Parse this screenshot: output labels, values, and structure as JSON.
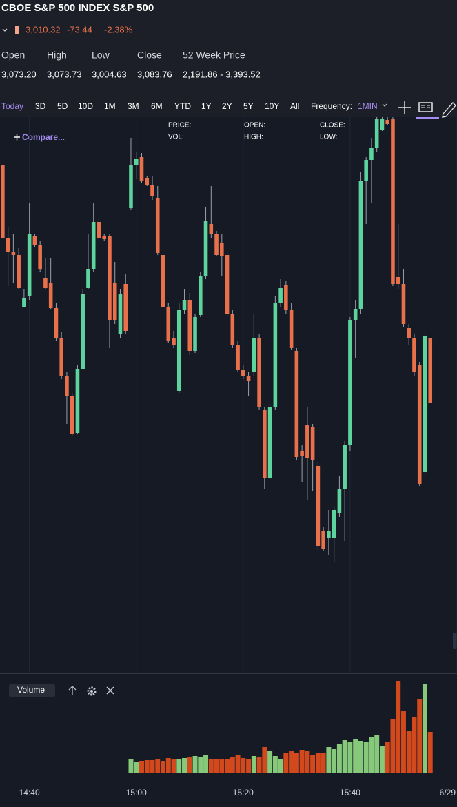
{
  "header": {
    "title": "CBOE S&P 500 INDEX S&P 500",
    "price": "3,010.32",
    "change": "-73.44",
    "change_percent": "-2.38%"
  },
  "stats": {
    "labels": [
      "Open",
      "High",
      "Low",
      "Close",
      "52 Week Price"
    ],
    "values": [
      "3,073.20",
      "3,073.73",
      "3,004.63",
      "3,083.76",
      "2,191.86 - 3,393.52"
    ]
  },
  "toolbar": {
    "ranges": [
      "Today",
      "3D",
      "5D",
      "10D",
      "1M",
      "3M",
      "6M",
      "YTD",
      "1Y",
      "2Y",
      "5Y",
      "10Y",
      "All"
    ],
    "frequency_label": "Frequency:",
    "frequency": "1MIN"
  },
  "chart_data": {
    "type": "candlestick",
    "compare": "Compare...",
    "legend_labels": [
      "PRICE:",
      "VOL:",
      "OPEN:",
      "HIGH:",
      "CLOSE:",
      "LOW:"
    ],
    "volume_label": "Volume",
    "up_color": "#5dd39e",
    "down_color": "#e8704a",
    "volume_up_color": "#86c97a",
    "volume_down_color": "#d2491d",
    "grid": true,
    "xlim": [
      874.5,
      960
    ],
    "xticks": [
      {
        "value": 880,
        "label": "14:40"
      },
      {
        "value": 900,
        "label": "15:00"
      },
      {
        "value": 920,
        "label": "15:20"
      },
      {
        "value": 940,
        "label": "15:40"
      },
      {
        "value": 960,
        "label": "6/29"
      }
    ],
    "ylim": [
      2999,
      3079.5
    ],
    "volume_ylim": [
      0,
      134
    ],
    "x": [
      875,
      876,
      877,
      878,
      879,
      880,
      881,
      882,
      883,
      884,
      885,
      886,
      887,
      888,
      889,
      890,
      891,
      892,
      893,
      894,
      895,
      896,
      897,
      898,
      899,
      900,
      901,
      902,
      903,
      904,
      905,
      906,
      907,
      908,
      909,
      910,
      911,
      912,
      913,
      914,
      915,
      916,
      917,
      918,
      919,
      920,
      921,
      922,
      923,
      924,
      925,
      926,
      927,
      928,
      929,
      930,
      931,
      932,
      933,
      934,
      935,
      936,
      937,
      938,
      939,
      940,
      941,
      942,
      943,
      944,
      945,
      946,
      947,
      948,
      949,
      950,
      951,
      952,
      953,
      954,
      955
    ],
    "open": [
      3072.5,
      3062,
      3060,
      3059.5,
      3052,
      3053.5,
      3062.2,
      3061,
      3056.2,
      3055.5,
      3051.8,
      3047.5,
      3042,
      3039,
      3033.7,
      3043,
      3054.7,
      3057.5,
      3064.3,
      3062.2,
      3062.2,
      3055.5,
      3048,
      3055.3,
      3066.3,
      3072.5,
      3073.7,
      3070.7,
      3069.7,
      3067.7,
      3059.5,
      3052,
      3047.5,
      3039.8,
      3051.5,
      3053,
      3045.5,
      3050.8,
      3056.5,
      3064,
      3062.5,
      3061.3,
      3059.5,
      3051,
      3046.5,
      3042.8,
      3042,
      3042.5,
      3047.5,
      3037,
      3027.2,
      3037.5,
      3052.5,
      3055.2,
      3051.5,
      3045.5,
      3031,
      3034.8,
      3034.5,
      3028.9,
      3019.5,
      3018.5,
      3018.5,
      3022,
      3025.5,
      3032,
      3050,
      3051.7,
      3070.3,
      3073.3,
      3075,
      3077.7,
      3079.1,
      3079.3,
      3056.3,
      3055.3,
      3048.9,
      3047.5,
      3043.5,
      3028,
      3047.5
    ],
    "close": [
      3062,
      3060,
      3059.5,
      3054.7,
      3053.3,
      3062.5,
      3061,
      3057.5,
      3054.7,
      3051.8,
      3047.5,
      3042,
      3039,
      3033.5,
      3043,
      3053.8,
      3057.5,
      3064.3,
      3062,
      3061.8,
      3050,
      3050,
      3053.8,
      3048.5,
      3072.5,
      3073.5,
      3070.3,
      3069.7,
      3068,
      3059.8,
      3052,
      3047,
      3046.5,
      3051.5,
      3053,
      3045.5,
      3050.5,
      3056.5,
      3064.5,
      3062.5,
      3059.5,
      3059.3,
      3051,
      3046.5,
      3042.8,
      3042,
      3041.2,
      3047.5,
      3037.5,
      3027.2,
      3037.5,
      3052.5,
      3054.7,
      3051.5,
      3046,
      3030.2,
      3030.3,
      3030,
      3029.7,
      3017.2,
      3016.9,
      3019.5,
      3022.5,
      3025.5,
      3032,
      3050,
      3051.7,
      3070.3,
      3073.3,
      3075,
      3079.3,
      3079.3,
      3078.5,
      3055.3,
      3055.3,
      3049.5,
      3047.5,
      3042.5,
      3026.2,
      3047.8,
      3038
    ],
    "high": [
      3072.5,
      3063.5,
      3062.5,
      3060.5,
      3054.5,
      3067,
      3062.5,
      3061.5,
      3059,
      3059,
      3052.5,
      3048.3,
      3042.5,
      3039.5,
      3043.5,
      3054.5,
      3062.5,
      3067,
      3065.5,
      3062.5,
      3062.5,
      3058.5,
      3054.5,
      3056.7,
      3076.5,
      3074.5,
      3074.3,
      3071,
      3071,
      3069.5,
      3060,
      3052.5,
      3048.5,
      3052.5,
      3054.5,
      3054,
      3051,
      3057,
      3066.5,
      3069.5,
      3063,
      3062.5,
      3060,
      3051.5,
      3047,
      3043.5,
      3042.5,
      3051,
      3048,
      3037.5,
      3038,
      3053.5,
      3056,
      3055.7,
      3052.5,
      3046,
      3032,
      3037.5,
      3035,
      3029.5,
      3020,
      3022.5,
      3023,
      3027.5,
      3032.5,
      3050.5,
      3053,
      3071.5,
      3073.7,
      3076.5,
      3079.5,
      3079.5,
      3079.5,
      3079.5,
      3064,
      3057.5,
      3049.5,
      3048,
      3044,
      3048.3,
      3047.5
    ],
    "low": [
      3062,
      3055,
      3055.5,
      3054.5,
      3052,
      3053,
      3060.7,
      3057,
      3054.5,
      3051.7,
      3047,
      3041.5,
      3035,
      3033.3,
      3033.5,
      3043,
      3054.5,
      3057,
      3061.5,
      3061.5,
      3046,
      3049.5,
      3047.5,
      3048,
      3066,
      3070.5,
      3070,
      3069.5,
      3067.5,
      3059.5,
      3051.7,
      3046.7,
      3046,
      3039.5,
      3051,
      3045,
      3045.3,
      3050.5,
      3056,
      3062,
      3059.3,
      3056.5,
      3050.5,
      3046,
      3042.5,
      3041.5,
      3039,
      3042,
      3037,
      3025.5,
      3027,
      3037,
      3052,
      3051,
      3045.7,
      3029.7,
      3026.5,
      3024,
      3025.3,
      3016.7,
      3016.5,
      3016,
      3015,
      3021.5,
      3018,
      3031,
      3044.5,
      3051,
      3064,
      3067,
      3074.5,
      3077.5,
      3078.3,
      3055,
      3054.5,
      3049,
      3046.5,
      3042,
      3026,
      3027.5,
      3038
    ],
    "volume": [
      null,
      null,
      null,
      null,
      null,
      null,
      null,
      null,
      null,
      null,
      null,
      null,
      null,
      null,
      null,
      null,
      null,
      null,
      null,
      null,
      null,
      null,
      null,
      null,
      20,
      16,
      18,
      19,
      19,
      21,
      18,
      22,
      20,
      20,
      22,
      24,
      25,
      24,
      26,
      21,
      20,
      21,
      20,
      23,
      26,
      22,
      20,
      25,
      24,
      38,
      32,
      25,
      20,
      29,
      32,
      30,
      33,
      32,
      26,
      30,
      29,
      38,
      35,
      42,
      48,
      46,
      50,
      47,
      46,
      52,
      55,
      40,
      45,
      78,
      134,
      90,
      62,
      82,
      108,
      130,
      60
    ]
  }
}
